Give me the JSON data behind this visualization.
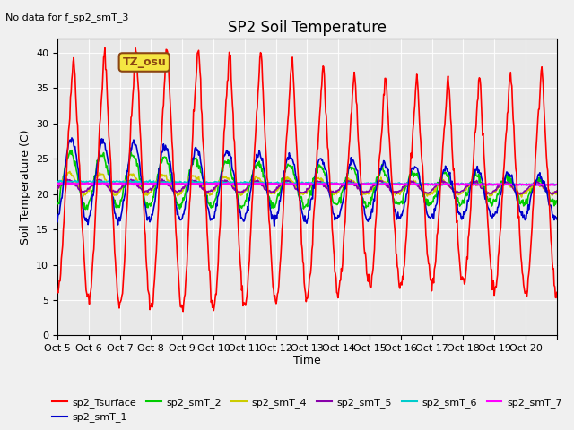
{
  "title": "SP2 Soil Temperature",
  "subtitle": "No data for f_sp2_smT_3",
  "ylabel": "Soil Temperature (C)",
  "xlabel": "Time",
  "xlabels": [
    "Oct 5",
    "Oct 6",
    "Oct 7",
    "Oct 8",
    "Oct 9",
    "Oct 10",
    "Oct 11",
    "Oct 12",
    "Oct 13",
    "Oct 14",
    "Oct 15",
    "Oct 16",
    "Oct 17",
    "Oct 18",
    "Oct 19",
    "Oct 20",
    ""
  ],
  "ylim": [
    0,
    42
  ],
  "yticks": [
    0,
    5,
    10,
    15,
    20,
    25,
    30,
    35,
    40
  ],
  "tz_label": "TZ_osu",
  "series_colors": {
    "sp2_Tsurface": "#ff0000",
    "sp2_smT_1": "#0000cc",
    "sp2_smT_2": "#00cc00",
    "sp2_smT_4": "#cccc00",
    "sp2_smT_5": "#8800aa",
    "sp2_smT_6": "#00cccc",
    "sp2_smT_7": "#ff00ff"
  },
  "legend_entries": [
    "sp2_Tsurface",
    "sp2_smT_1",
    "sp2_smT_2",
    "sp2_smT_4",
    "sp2_smT_5",
    "sp2_smT_6",
    "sp2_smT_7"
  ]
}
